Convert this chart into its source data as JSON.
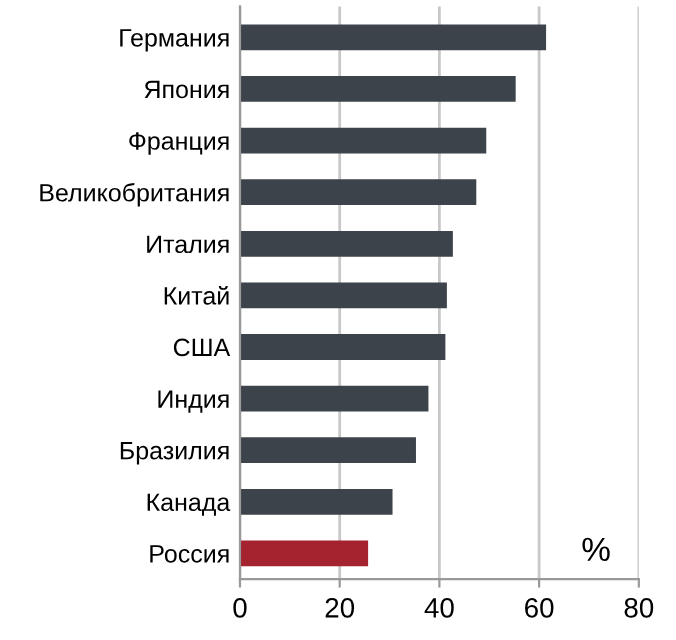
{
  "chart_data": {
    "type": "bar",
    "orientation": "horizontal",
    "categories": [
      "Германия",
      "Япония",
      "Франция",
      "Великобритания",
      "Италия",
      "Китай",
      "США",
      "Индия",
      "Бразилия",
      "Канада",
      "Россия"
    ],
    "values": [
      61.4,
      55.3,
      49.4,
      47.4,
      42.7,
      41.5,
      41.2,
      37.8,
      35.3,
      30.6,
      25.7
    ],
    "colors": [
      "#3d434a",
      "#3d434a",
      "#3d434a",
      "#3d434a",
      "#3d434a",
      "#3d434a",
      "#3d434a",
      "#3d434a",
      "#3d434a",
      "#3d434a",
      "#a4232e"
    ],
    "xlim": [
      0,
      80
    ],
    "xticks": [
      0,
      20,
      40,
      60,
      80
    ],
    "grid": "x",
    "legend": false,
    "annotations": [
      "%"
    ]
  }
}
